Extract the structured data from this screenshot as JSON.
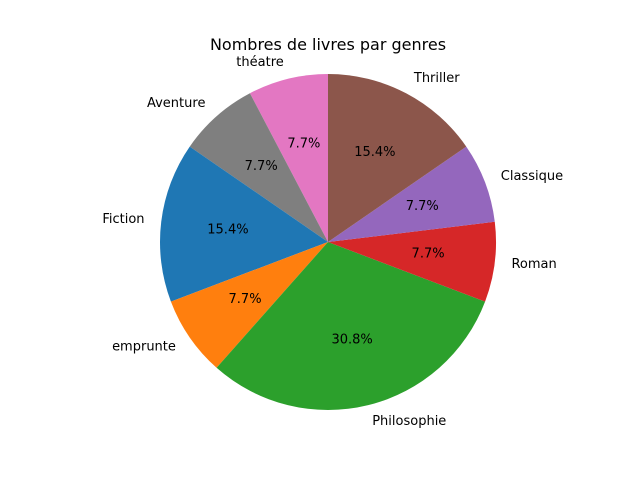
{
  "chart_data": {
    "type": "pie",
    "title": "Nombres de livres par genres",
    "start_angle_deg": 90,
    "direction": "counterclockwise",
    "slices": [
      {
        "label": "théatre",
        "value": 1,
        "pct_label": "7.7%",
        "color": "#e377c2"
      },
      {
        "label": "Aventure",
        "value": 1,
        "pct_label": "7.7%",
        "color": "#7f7f7f"
      },
      {
        "label": "Fiction",
        "value": 2,
        "pct_label": "15.4%",
        "color": "#1f77b4"
      },
      {
        "label": "emprunte",
        "value": 1,
        "pct_label": "7.7%",
        "color": "#ff7f0e"
      },
      {
        "label": "Philosophie",
        "value": 4,
        "pct_label": "30.8%",
        "color": "#2ca02c"
      },
      {
        "label": "Roman",
        "value": 1,
        "pct_label": "7.7%",
        "color": "#d62728"
      },
      {
        "label": "Classique",
        "value": 1,
        "pct_label": "7.7%",
        "color": "#9467bd"
      },
      {
        "label": "Thriller",
        "value": 2,
        "pct_label": "15.4%",
        "color": "#8c564b"
      }
    ]
  }
}
